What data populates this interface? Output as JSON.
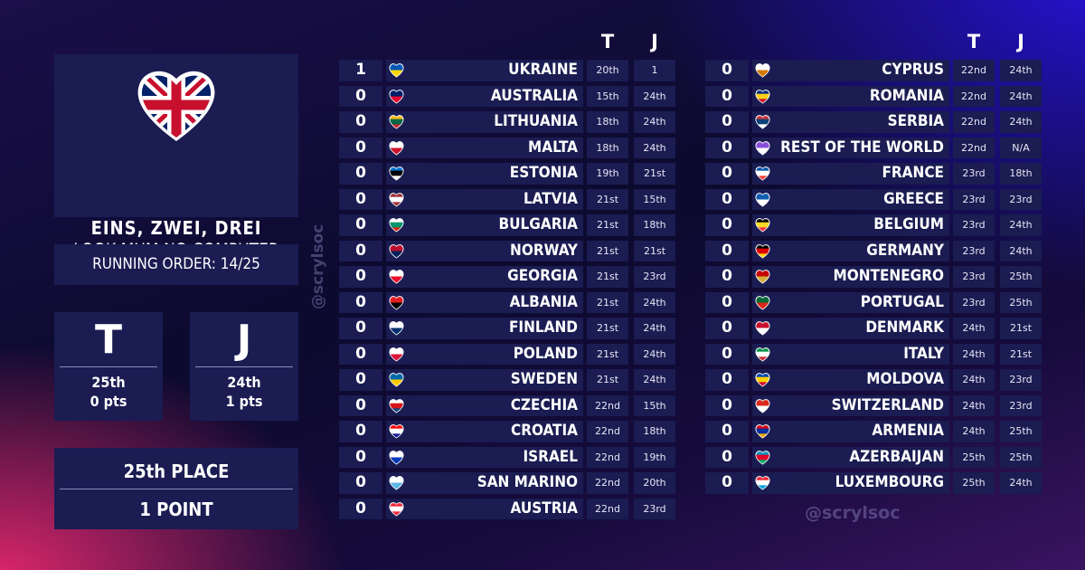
{
  "song": {
    "flag_icon": "uk-heart-flag-icon",
    "title": "EINS, ZWEI, DREI",
    "artist": "LOOK MUM NO COMPUTER"
  },
  "running_order": "RUNNING ORDER: 14/25",
  "televote": {
    "letter": "T",
    "rank": "25th",
    "points": "0 pts"
  },
  "jury": {
    "letter": "J",
    "rank": "24th",
    "points": "1 pts"
  },
  "final": {
    "place": "25th PLACE",
    "points": "1 POINT"
  },
  "watermark": "@scrylsoc",
  "columns": {
    "televote": "T",
    "jury": "J"
  },
  "colors": {
    "panel": "#1a1c52",
    "accent_pink": "#e8286e",
    "accent_blue": "#2814e6"
  },
  "table_left": [
    {
      "points": "1",
      "country": "UKRAINE",
      "tele": "20th",
      "jury": "1",
      "flag": [
        "#0057b8",
        "#ffd700"
      ]
    },
    {
      "points": "0",
      "country": "AUSTRALIA",
      "tele": "15th",
      "jury": "24th",
      "flag": [
        "#012169",
        "#e4002b"
      ]
    },
    {
      "points": "0",
      "country": "LITHUANIA",
      "tele": "18th",
      "jury": "24th",
      "flag": [
        "#fdb913",
        "#006a44",
        "#c1272d"
      ]
    },
    {
      "points": "0",
      "country": "MALTA",
      "tele": "18th",
      "jury": "24th",
      "flag": [
        "#ffffff",
        "#cf142b"
      ]
    },
    {
      "points": "0",
      "country": "ESTONIA",
      "tele": "19th",
      "jury": "21st",
      "flag": [
        "#0072ce",
        "#000000",
        "#ffffff"
      ]
    },
    {
      "points": "0",
      "country": "LATVIA",
      "tele": "21st",
      "jury": "15th",
      "flag": [
        "#9e3039",
        "#ffffff",
        "#9e3039"
      ]
    },
    {
      "points": "0",
      "country": "BULGARIA",
      "tele": "21st",
      "jury": "18th",
      "flag": [
        "#ffffff",
        "#00966e",
        "#d62612"
      ]
    },
    {
      "points": "0",
      "country": "NORWAY",
      "tele": "21st",
      "jury": "21st",
      "flag": [
        "#ba0c2f",
        "#00205b"
      ]
    },
    {
      "points": "0",
      "country": "GEORGIA",
      "tele": "21st",
      "jury": "23rd",
      "flag": [
        "#ffffff",
        "#e8112d"
      ]
    },
    {
      "points": "0",
      "country": "ALBANIA",
      "tele": "21st",
      "jury": "24th",
      "flag": [
        "#e41e20",
        "#000000"
      ]
    },
    {
      "points": "0",
      "country": "FINLAND",
      "tele": "21st",
      "jury": "24th",
      "flag": [
        "#ffffff",
        "#002f6c"
      ]
    },
    {
      "points": "0",
      "country": "POLAND",
      "tele": "21st",
      "jury": "24th",
      "flag": [
        "#ffffff",
        "#dc143c"
      ]
    },
    {
      "points": "0",
      "country": "SWEDEN",
      "tele": "21st",
      "jury": "24th",
      "flag": [
        "#006aa7",
        "#fecc00"
      ]
    },
    {
      "points": "0",
      "country": "CZECHIA",
      "tele": "22nd",
      "jury": "15th",
      "flag": [
        "#ffffff",
        "#d7141a",
        "#11457e"
      ]
    },
    {
      "points": "0",
      "country": "CROATIA",
      "tele": "22nd",
      "jury": "18th",
      "flag": [
        "#ff0000",
        "#ffffff",
        "#171796"
      ]
    },
    {
      "points": "0",
      "country": "ISRAEL",
      "tele": "22nd",
      "jury": "19th",
      "flag": [
        "#ffffff",
        "#0038b8"
      ]
    },
    {
      "points": "0",
      "country": "SAN MARINO",
      "tele": "22nd",
      "jury": "20th",
      "flag": [
        "#ffffff",
        "#5eb6e4"
      ]
    },
    {
      "points": "0",
      "country": "AUSTRIA",
      "tele": "22nd",
      "jury": "23rd",
      "flag": [
        "#ed2939",
        "#ffffff",
        "#ed2939"
      ]
    }
  ],
  "table_right": [
    {
      "points": "0",
      "country": "CYPRUS",
      "tele": "22nd",
      "jury": "24th",
      "flag": [
        "#ffffff",
        "#d57800"
      ]
    },
    {
      "points": "0",
      "country": "ROMANIA",
      "tele": "22nd",
      "jury": "24th",
      "flag": [
        "#002b7f",
        "#fcd116",
        "#ce1126"
      ]
    },
    {
      "points": "0",
      "country": "SERBIA",
      "tele": "22nd",
      "jury": "24th",
      "flag": [
        "#c6363c",
        "#0c4076",
        "#ffffff"
      ]
    },
    {
      "points": "0",
      "country": "REST OF THE WORLD",
      "tele": "22nd",
      "jury": "N/A",
      "flag": [
        "#8a4fd8",
        "#ffffff"
      ]
    },
    {
      "points": "0",
      "country": "FRANCE",
      "tele": "23rd",
      "jury": "18th",
      "flag": [
        "#0055a4",
        "#ffffff",
        "#ef4135"
      ]
    },
    {
      "points": "0",
      "country": "GREECE",
      "tele": "23rd",
      "jury": "23rd",
      "flag": [
        "#0d5eaf",
        "#ffffff"
      ]
    },
    {
      "points": "0",
      "country": "BELGIUM",
      "tele": "23rd",
      "jury": "24th",
      "flag": [
        "#000000",
        "#fdda24",
        "#ef3340"
      ]
    },
    {
      "points": "0",
      "country": "GERMANY",
      "tele": "23rd",
      "jury": "24th",
      "flag": [
        "#000000",
        "#dd0000",
        "#ffce00"
      ]
    },
    {
      "points": "0",
      "country": "MONTENEGRO",
      "tele": "23rd",
      "jury": "25th",
      "flag": [
        "#c40308",
        "#d4af3a"
      ]
    },
    {
      "points": "0",
      "country": "PORTUGAL",
      "tele": "23rd",
      "jury": "25th",
      "flag": [
        "#046a38",
        "#da291c"
      ]
    },
    {
      "points": "0",
      "country": "DENMARK",
      "tele": "24th",
      "jury": "21st",
      "flag": [
        "#c8102e",
        "#ffffff"
      ]
    },
    {
      "points": "0",
      "country": "ITALY",
      "tele": "24th",
      "jury": "21st",
      "flag": [
        "#009246",
        "#ffffff",
        "#ce2b37"
      ]
    },
    {
      "points": "0",
      "country": "MOLDOVA",
      "tele": "24th",
      "jury": "23rd",
      "flag": [
        "#0046ae",
        "#ffd200",
        "#cc092f"
      ]
    },
    {
      "points": "0",
      "country": "SWITZERLAND",
      "tele": "24th",
      "jury": "23rd",
      "flag": [
        "#da291c",
        "#ffffff"
      ]
    },
    {
      "points": "0",
      "country": "ARMENIA",
      "tele": "24th",
      "jury": "25th",
      "flag": [
        "#d90012",
        "#0033a0",
        "#f2a800"
      ]
    },
    {
      "points": "0",
      "country": "AZERBAIJAN",
      "tele": "25th",
      "jury": "25th",
      "flag": [
        "#0092bc",
        "#e4002b",
        "#00af66"
      ]
    },
    {
      "points": "0",
      "country": "LUXEMBOURG",
      "tele": "25th",
      "jury": "24th",
      "flag": [
        "#ed2939",
        "#ffffff",
        "#00a1de"
      ]
    }
  ]
}
